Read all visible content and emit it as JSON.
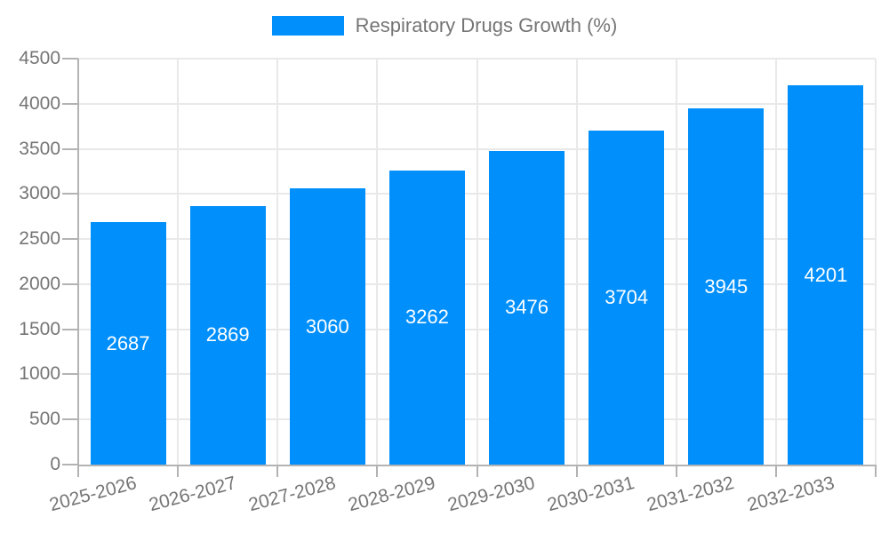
{
  "legend": {
    "position": "top",
    "series_label": "Respiratory Drugs Growth (%)"
  },
  "chart_data": {
    "type": "bar",
    "title": "Respiratory Drugs Growth (%)",
    "categories": [
      "2025-2026",
      "2026-2027",
      "2027-2028",
      "2028-2029",
      "2029-2030",
      "2030-2031",
      "2031-2032",
      "2032-2033"
    ],
    "series": [
      {
        "name": "Respiratory Drugs Growth (%)",
        "values": [
          2687,
          2869,
          3060,
          3262,
          3476,
          3704,
          3945,
          4201
        ]
      }
    ],
    "bar_value_labels": [
      "2687",
      "2869",
      "3060",
      "3262",
      "3476",
      "3704",
      "3945",
      "4201"
    ],
    "xlabel": "",
    "ylabel": "",
    "ylim": [
      0,
      4500
    ],
    "ytick_step": 500,
    "ytick_labels": [
      "0",
      "500",
      "1000",
      "1500",
      "2000",
      "2500",
      "3000",
      "3500",
      "4000",
      "4500"
    ],
    "grid": "on",
    "legend_position": "top",
    "value_labels_position": "inside-center",
    "xtick_label_rotation_deg": -15,
    "colors": {
      "bar": "#008FFB",
      "value_label": "#FFFFFF",
      "axis_text": "#757575",
      "grid_line": "#E9E9E9",
      "axis_line": "#B3B3B3",
      "background": "#FFFFFF"
    }
  }
}
